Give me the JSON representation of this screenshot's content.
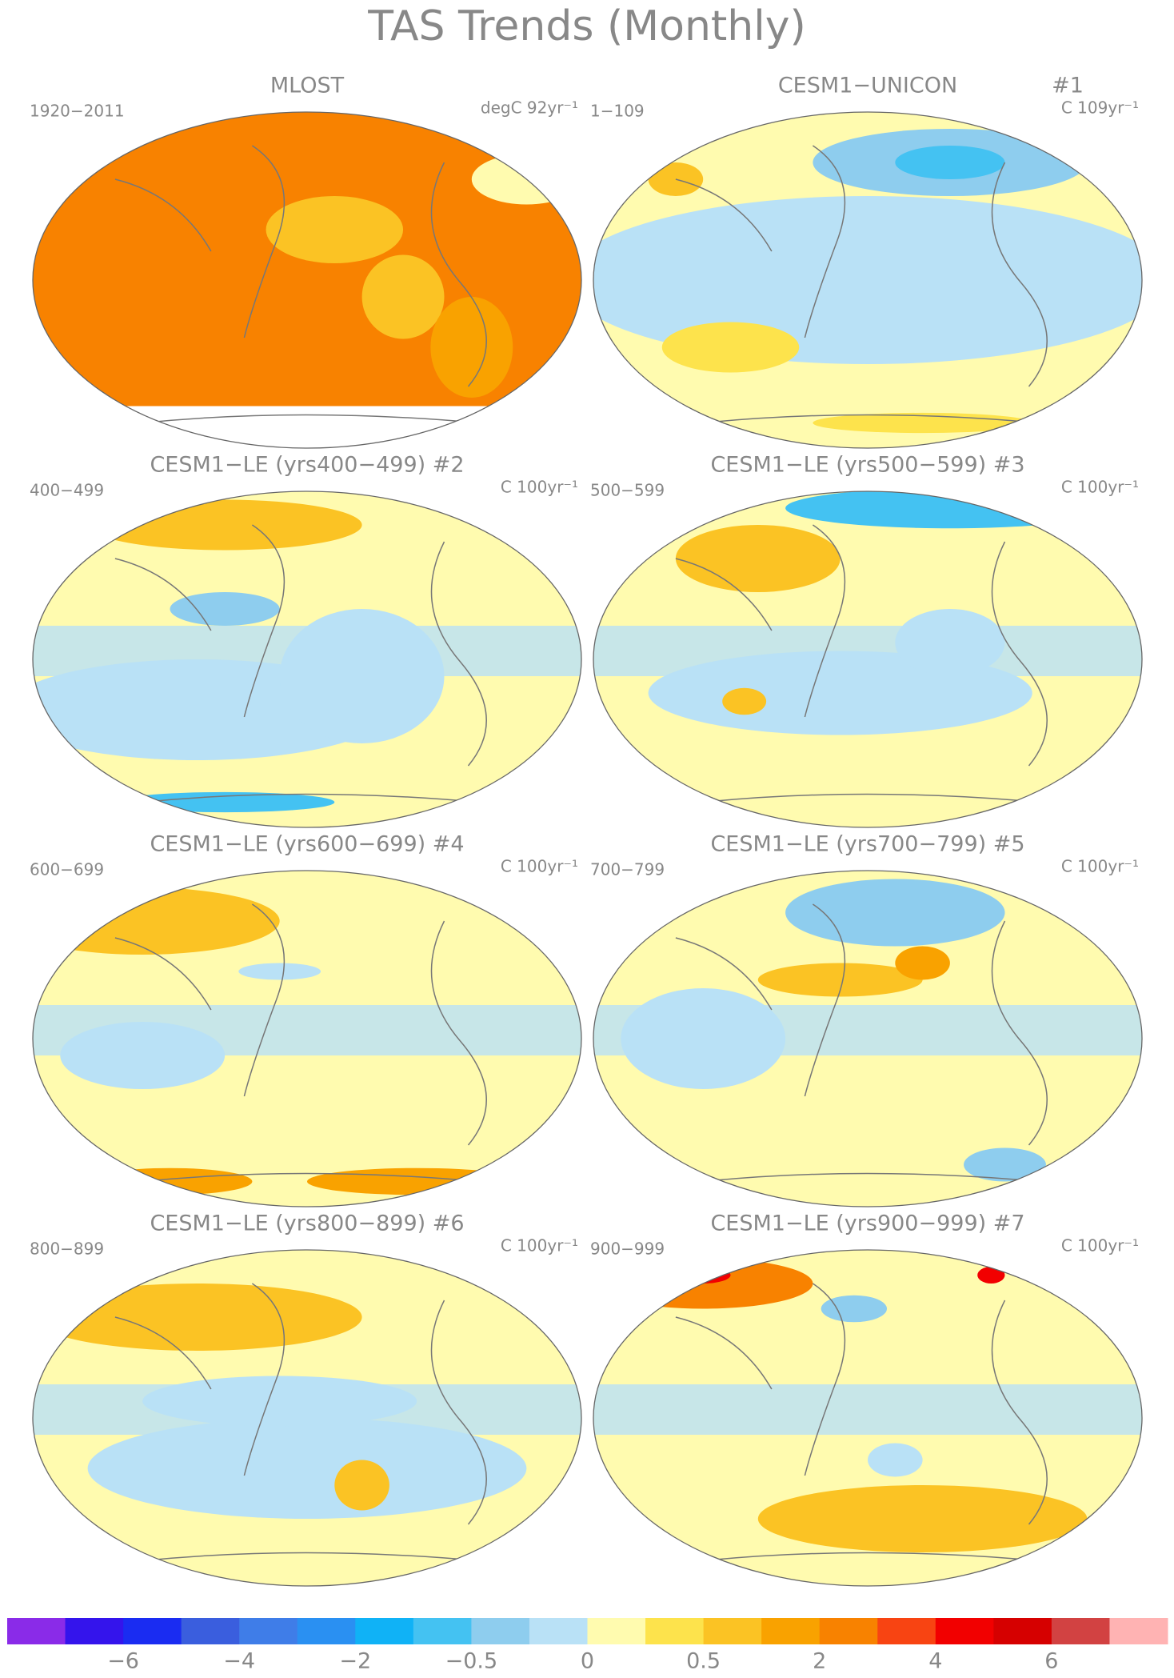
{
  "title": "TAS Trends (Monthly)",
  "panels": [
    {
      "title": "MLOST",
      "period": "1920−2011",
      "units": "degC 92yr⁻¹"
    },
    {
      "title": "CESM1−UNICON",
      "tag": "#1",
      "period": "1−109",
      "units": "C 109yr⁻¹"
    },
    {
      "title": "CESM1−LE (yrs400−499) #2",
      "period": "400−499",
      "units": "C 100yr⁻¹"
    },
    {
      "title": "CESM1−LE (yrs500−599) #3",
      "period": "500−599",
      "units": "C 100yr⁻¹"
    },
    {
      "title": "CESM1−LE (yrs600−699) #4",
      "period": "600−699",
      "units": "C 100yr⁻¹"
    },
    {
      "title": "CESM1−LE (yrs700−799) #5",
      "period": "700−799",
      "units": "C 100yr⁻¹"
    },
    {
      "title": "CESM1−LE (yrs800−899) #6",
      "period": "800−899",
      "units": "C 100yr⁻¹"
    },
    {
      "title": "CESM1−LE (yrs900−999) #7",
      "period": "900−999",
      "units": "C 100yr⁻¹"
    }
  ],
  "colorbar": {
    "colors": [
      "#8a2be8",
      "#3414ec",
      "#1a2cf2",
      "#3a5ede",
      "#3f7de8",
      "#2a90f2",
      "#10b2f6",
      "#44c2f2",
      "#8ecdee",
      "#b9e1f6",
      "#fffbaf",
      "#fde34c",
      "#fbc324",
      "#f9a200",
      "#f88200",
      "#f84412",
      "#f20000",
      "#d60000",
      "#d24242",
      "#ffb3b3"
    ],
    "labels": [
      "−6",
      "−4",
      "−2",
      "−0.5",
      "0",
      "0.5",
      "2",
      "4",
      "6"
    ]
  }
}
